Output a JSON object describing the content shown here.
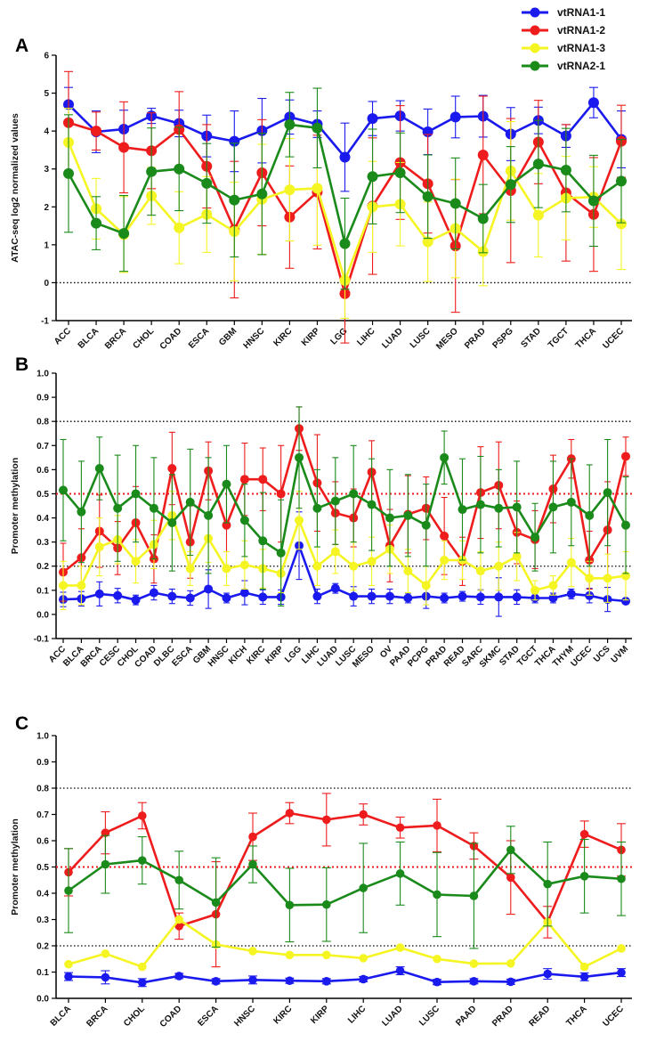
{
  "legend": [
    {
      "name": "vtRNA1-1",
      "color": "#1a1aee"
    },
    {
      "name": "vtRNA1-2",
      "color": "#ee1c1c"
    },
    {
      "name": "vtRNA1-3",
      "color": "#f5f524"
    },
    {
      "name": "vtRNA2-1",
      "color": "#1a8a1a"
    }
  ],
  "chart_data": [
    {
      "type": "line",
      "panel_label": "A",
      "ylabel": "ATAC-seq log2 normalized values",
      "ylim": [
        -1,
        6
      ],
      "yticks": [
        "-1",
        "0",
        "1",
        "2",
        "3",
        "4",
        "5",
        "6"
      ],
      "reference_lines": [
        {
          "y": 0,
          "color": "#000000"
        }
      ],
      "categories": [
        "ACC",
        "BLCA",
        "BRCA",
        "CHOL",
        "COAD",
        "ESCA",
        "GBM",
        "HNSC",
        "KIRC",
        "KIRP",
        "LGG",
        "LIHC",
        "LUAD",
        "LUSC",
        "MESO",
        "PRAD",
        "PSPG",
        "STAD",
        "TGCT",
        "THCA",
        "UCEC"
      ],
      "series": [
        {
          "name": "vtRNA1-1",
          "color": "#1a1aee",
          "values": [
            4.7,
            3.98,
            4.05,
            4.4,
            4.2,
            3.87,
            3.73,
            4.01,
            4.37,
            4.18,
            3.31,
            4.33,
            4.4,
            3.98,
            4.37,
            4.39,
            3.92,
            4.28,
            3.87,
            4.75,
            3.78
          ],
          "errors": [
            0.45,
            0.55,
            0.5,
            0.2,
            0.35,
            0.55,
            0.8,
            0.85,
            0.45,
            0.35,
            0.9,
            0.45,
            0.4,
            0.6,
            0.55,
            0.55,
            0.7,
            0.35,
            0.3,
            0.4,
            0.75
          ]
        },
        {
          "name": "vtRNA1-2",
          "color": "#ee1c1c",
          "values": [
            4.22,
            4.0,
            3.57,
            3.48,
            4.04,
            3.07,
            1.4,
            2.9,
            1.73,
            2.39,
            -0.29,
            2.02,
            3.17,
            2.61,
            0.97,
            3.37,
            2.43,
            3.71,
            2.37,
            1.8,
            3.73
          ],
          "errors": [
            1.35,
            0.5,
            1.2,
            1.0,
            1.0,
            1.1,
            1.8,
            1.4,
            1.35,
            1.5,
            1.3,
            1.8,
            1.5,
            1.3,
            1.75,
            1.55,
            1.9,
            1.1,
            1.8,
            1.5,
            0.95
          ]
        },
        {
          "name": "vtRNA1-3",
          "color": "#f5f524",
          "values": [
            3.7,
            1.95,
            1.27,
            2.29,
            1.45,
            1.8,
            1.35,
            2.2,
            2.45,
            2.49,
            0.06,
            2.0,
            2.07,
            1.08,
            1.43,
            0.82,
            2.95,
            1.78,
            2.23,
            2.26,
            1.55
          ],
          "errors": [
            0.9,
            0.8,
            1.0,
            0.75,
            0.95,
            1.0,
            1.3,
            1.45,
            1.35,
            1.5,
            1.0,
            1.2,
            1.1,
            1.05,
            1.3,
            0.9,
            1.3,
            1.1,
            1.1,
            0.8,
            1.2
          ]
        },
        {
          "name": "vtRNA2-1",
          "color": "#1a8a1a",
          "values": [
            2.88,
            1.57,
            1.3,
            2.93,
            3.0,
            2.62,
            2.18,
            2.34,
            4.17,
            4.08,
            1.03,
            2.8,
            2.9,
            2.27,
            2.09,
            1.69,
            2.59,
            3.13,
            2.97,
            2.16,
            2.68
          ],
          "errors": [
            1.55,
            0.7,
            1.0,
            1.15,
            1.1,
            1.05,
            1.5,
            1.6,
            0.85,
            1.05,
            1.2,
            1.25,
            1.05,
            1.1,
            1.2,
            0.9,
            1.0,
            1.15,
            1.1,
            1.2,
            1.1
          ]
        }
      ]
    },
    {
      "type": "line",
      "panel_label": "B",
      "ylabel": "Promoter methylation",
      "ylim": [
        -0.1,
        1.0
      ],
      "yticks": [
        "-0.1",
        "0.0",
        "0.1",
        "0.2",
        "0.3",
        "0.4",
        "0.5",
        "0.6",
        "0.7",
        "0.8",
        "0.9",
        "1.0"
      ],
      "reference_lines": [
        {
          "y": 0.8,
          "color": "#000000"
        },
        {
          "y": 0.5,
          "color": "#ee1c1c"
        },
        {
          "y": 0.2,
          "color": "#000000"
        }
      ],
      "categories": [
        "ACC",
        "BLCA",
        "BRCA",
        "CESC",
        "CHOL",
        "COAD",
        "DLBC",
        "ESCA",
        "GBM",
        "HNSC",
        "KICH",
        "KIRC",
        "KIRP",
        "LGG",
        "LIHC",
        "LUAD",
        "LUSC",
        "MESO",
        "OV",
        "PAAD",
        "PCPG",
        "PRAD",
        "READ",
        "SARC",
        "SKMC",
        "STAD",
        "TGCT",
        "THCA",
        "THYM",
        "UCEC",
        "UCS",
        "UVM"
      ],
      "series": [
        {
          "name": "vtRNA1-1",
          "color": "#1a1aee",
          "values": [
            0.062,
            0.065,
            0.085,
            0.078,
            0.06,
            0.09,
            0.075,
            0.068,
            0.105,
            0.068,
            0.09,
            0.072,
            0.072,
            0.285,
            0.075,
            0.108,
            0.075,
            0.075,
            0.075,
            0.068,
            0.075,
            0.068,
            0.075,
            0.072,
            0.072,
            0.072,
            0.068,
            0.068,
            0.085,
            0.078,
            0.062,
            0.055
          ],
          "errors": [
            0.03,
            0.03,
            0.05,
            0.03,
            0.02,
            0.03,
            0.03,
            0.03,
            0.08,
            0.02,
            0.05,
            0.03,
            0.03,
            0.14,
            0.03,
            0.02,
            0.04,
            0.03,
            0.03,
            0.02,
            0.05,
            0.02,
            0.02,
            0.03,
            0.08,
            0.03,
            0.02,
            0.02,
            0.02,
            0.03,
            0.05,
            0.01
          ]
        },
        {
          "name": "vtRNA1-2",
          "color": "#ee1c1c",
          "values": [
            0.175,
            0.235,
            0.345,
            0.275,
            0.38,
            0.23,
            0.605,
            0.3,
            0.595,
            0.37,
            0.56,
            0.56,
            0.5,
            0.77,
            0.545,
            0.42,
            0.4,
            0.59,
            0.285,
            0.415,
            0.44,
            0.325,
            0.22,
            0.505,
            0.535,
            0.34,
            0.31,
            0.52,
            0.645,
            0.225,
            0.35,
            0.655
          ],
          "errors": [
            0.12,
            0.12,
            0.15,
            0.11,
            0.15,
            0.1,
            0.15,
            0.15,
            0.12,
            0.17,
            0.15,
            0.13,
            0.2,
            0.09,
            0.2,
            0.13,
            0.12,
            0.13,
            0.15,
            0.16,
            0.13,
            0.16,
            0.1,
            0.19,
            0.18,
            0.13,
            0.12,
            0.14,
            0.08,
            0.12,
            0.2,
            0.08
          ]
        },
        {
          "name": "vtRNA1-3",
          "color": "#f5f524",
          "values": [
            0.12,
            0.12,
            0.28,
            0.31,
            0.22,
            0.29,
            0.41,
            0.19,
            0.315,
            0.19,
            0.205,
            0.19,
            0.17,
            0.39,
            0.2,
            0.26,
            0.2,
            0.22,
            0.27,
            0.18,
            0.12,
            0.225,
            0.225,
            0.18,
            0.2,
            0.24,
            0.1,
            0.12,
            0.215,
            0.15,
            0.15,
            0.16
          ],
          "errors": [
            0.1,
            0.08,
            0.12,
            0.1,
            0.09,
            0.1,
            0.1,
            0.07,
            0.1,
            0.07,
            0.1,
            0.08,
            0.08,
            0.12,
            0.08,
            0.09,
            0.1,
            0.1,
            0.1,
            0.09,
            0.08,
            0.08,
            0.08,
            0.08,
            0.1,
            0.1,
            0.04,
            0.04,
            0.1,
            0.07,
            0.1,
            0.1
          ]
        },
        {
          "name": "vtRNA2-1",
          "color": "#1a8a1a",
          "values": [
            0.515,
            0.425,
            0.605,
            0.44,
            0.5,
            0.44,
            0.38,
            0.465,
            0.41,
            0.54,
            0.39,
            0.305,
            0.255,
            0.65,
            0.44,
            0.47,
            0.5,
            0.455,
            0.4,
            0.41,
            0.37,
            0.65,
            0.435,
            0.455,
            0.44,
            0.445,
            0.32,
            0.445,
            0.465,
            0.41,
            0.505,
            0.37
          ]
        },
        {
          "name": "_errors_vtRNA2-1",
          "color": "#1a8a1a",
          "values": [
            0.21,
            0.21,
            0.13,
            0.22,
            0.2,
            0.21,
            0.2,
            0.22,
            0.24,
            0.16,
            0.15,
            0.2,
            0.22,
            0.21,
            0.16,
            0.18,
            0.2,
            0.19,
            0.2,
            0.17,
            0.17,
            0.11,
            0.21,
            0.2,
            0.16,
            0.19,
            0.14,
            0.19,
            0.18,
            0.21,
            0.22,
            0.2
          ]
        }
      ]
    },
    {
      "type": "line",
      "panel_label": "C",
      "ylabel": "Promoter methylation",
      "ylim": [
        0.0,
        1.0
      ],
      "yticks": [
        "0.0",
        "0.1",
        "0.2",
        "0.3",
        "0.4",
        "0.5",
        "0.6",
        "0.7",
        "0.8",
        "0.9",
        "1.0"
      ],
      "reference_lines": [
        {
          "y": 0.8,
          "color": "#000000"
        },
        {
          "y": 0.5,
          "color": "#ee1c1c"
        },
        {
          "y": 0.2,
          "color": "#000000"
        }
      ],
      "categories": [
        "BLCA",
        "BRCA",
        "CHOL",
        "COAD",
        "ESCA",
        "HNSC",
        "KIRC",
        "KIRP",
        "LIHC",
        "LUAD",
        "LUSC",
        "PAAD",
        "PRAD",
        "READ",
        "THCA",
        "UCEC"
      ],
      "series": [
        {
          "name": "vtRNA1-1",
          "color": "#1a1aee",
          "values": [
            0.083,
            0.08,
            0.06,
            0.085,
            0.065,
            0.07,
            0.067,
            0.065,
            0.073,
            0.105,
            0.062,
            0.065,
            0.063,
            0.093,
            0.082,
            0.098
          ],
          "errors": [
            0.015,
            0.025,
            0.015,
            0.01,
            0.01,
            0.015,
            0.01,
            0.01,
            0.01,
            0.015,
            0.01,
            0.01,
            0.01,
            0.02,
            0.015,
            0.015
          ]
        },
        {
          "name": "vtRNA1-2",
          "color": "#ee1c1c",
          "values": [
            0.48,
            0.63,
            0.695,
            0.275,
            0.32,
            0.615,
            0.705,
            0.68,
            0.7,
            0.65,
            0.658,
            0.58,
            0.46,
            0.29,
            0.625,
            0.565
          ],
          "errors": [
            0.09,
            0.08,
            0.05,
            0.05,
            0.2,
            0.09,
            0.04,
            0.1,
            0.04,
            0.04,
            0.1,
            0.05,
            0.14,
            0.06,
            0.05,
            0.1
          ]
        },
        {
          "name": "vtRNA1-3",
          "color": "#f5f524",
          "values": [
            0.13,
            0.17,
            0.12,
            0.3,
            0.205,
            0.18,
            0.165,
            0.165,
            0.153,
            0.193,
            0.15,
            0.132,
            0.133,
            0.29,
            0.12,
            0.19
          ]
        },
        {
          "name": "vtRNA2-1",
          "color": "#1a8a1a",
          "values": [
            0.41,
            0.51,
            0.525,
            0.45,
            0.365,
            0.51,
            0.355,
            0.357,
            0.42,
            0.475,
            0.395,
            0.39,
            0.565,
            0.435,
            0.465,
            0.455
          ],
          "errors": [
            0.16,
            0.11,
            0.09,
            0.11,
            0.17,
            0.07,
            0.14,
            0.14,
            0.17,
            0.12,
            0.16,
            0.2,
            0.09,
            0.16,
            0.14,
            0.14
          ]
        }
      ]
    }
  ]
}
